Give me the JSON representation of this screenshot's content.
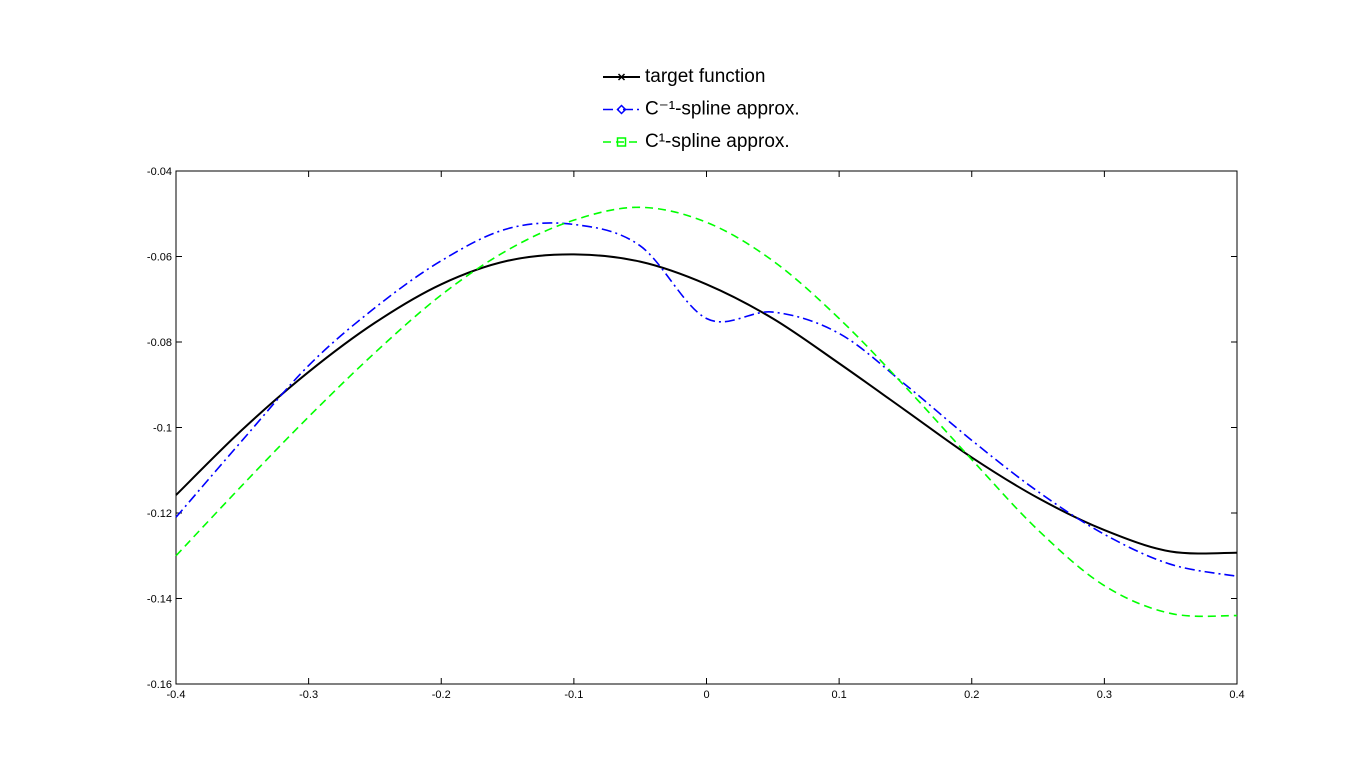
{
  "chart_data": {
    "type": "line",
    "x": [
      -0.4,
      -0.35,
      -0.3,
      -0.25,
      -0.2,
      -0.15,
      -0.1,
      -0.05,
      0,
      0.05,
      0.1,
      0.15,
      0.2,
      0.25,
      0.3,
      0.35,
      0.4
    ],
    "series": [
      {
        "name": "target function",
        "color": "#000000",
        "linestyle": "-",
        "marker": "x",
        "values": [
          -0.1158,
          -0.1005,
          -0.087,
          -0.0755,
          -0.0665,
          -0.061,
          -0.0595,
          -0.0612,
          -0.0665,
          -0.0745,
          -0.085,
          -0.096,
          -0.107,
          -0.1165,
          -0.124,
          -0.129,
          -0.1293
        ]
      },
      {
        "name": "C⁻¹-spline approx.",
        "color": "#0000ff",
        "linestyle": "-.",
        "marker": "diamond",
        "values": [
          -0.121,
          -0.103,
          -0.0855,
          -0.072,
          -0.061,
          -0.0535,
          -0.0525,
          -0.0575,
          -0.0745,
          -0.073,
          -0.078,
          -0.09,
          -0.103,
          -0.115,
          -0.125,
          -0.132,
          -0.1348
        ]
      },
      {
        "name": "C¹-spline approx.",
        "color": "#00ff00",
        "linestyle": "--",
        "marker": "square",
        "values": [
          -0.13,
          -0.1135,
          -0.0975,
          -0.0825,
          -0.069,
          -0.0585,
          -0.0515,
          -0.0485,
          -0.052,
          -0.061,
          -0.0745,
          -0.0905,
          -0.1075,
          -0.124,
          -0.137,
          -0.1435,
          -0.144
        ]
      }
    ],
    "xlim": [
      -0.4,
      0.4
    ],
    "xticks": [
      -0.4,
      -0.3,
      -0.2,
      -0.1,
      0,
      0.1,
      0.2,
      0.3,
      0.4
    ],
    "ylim": [
      -0.16,
      -0.04
    ],
    "yticks": [
      -0.16,
      -0.14,
      -0.12,
      -0.1,
      -0.08,
      -0.06,
      -0.04
    ],
    "grid": false,
    "legend": "north"
  }
}
